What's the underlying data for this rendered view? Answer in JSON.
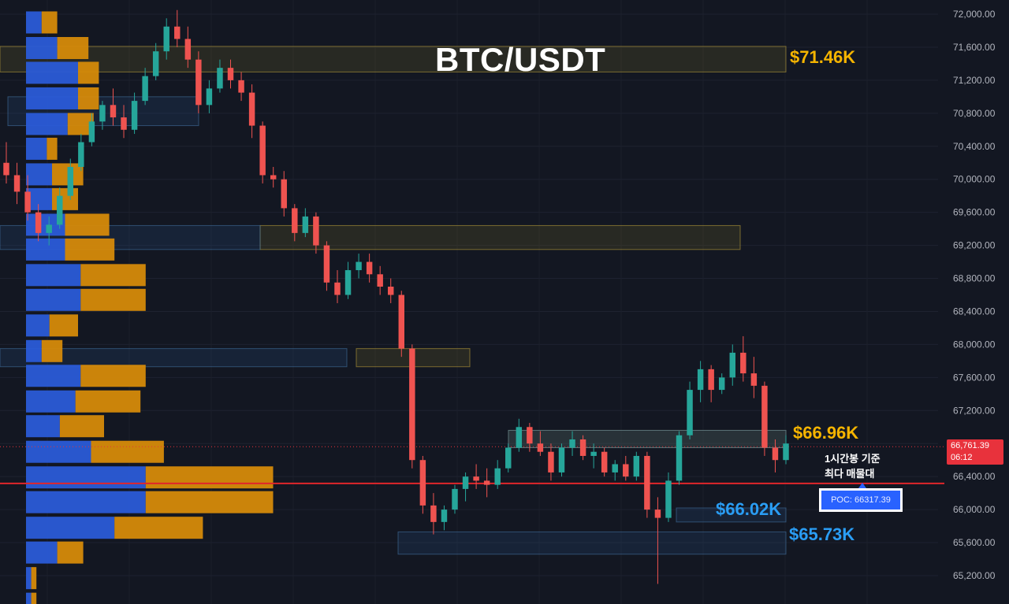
{
  "chart_data": {
    "type": "candlestick",
    "title": "BTC/USDT",
    "ylim": [
      65000,
      72200
    ],
    "y_ticks": [
      "72,000.00",
      "71,600.00",
      "71,200.00",
      "70,800.00",
      "70,400.00",
      "70,000.00",
      "69,600.00",
      "69,200.00",
      "68,800.00",
      "68,400.00",
      "68,000.00",
      "67,600.00",
      "67,200.00",
      "66,800.00",
      "66,400.00",
      "66,000.00",
      "65,600.00",
      "65,200.00"
    ],
    "y_tick_values": [
      72000,
      71600,
      71200,
      70800,
      70400,
      70000,
      69600,
      69200,
      68800,
      68400,
      68000,
      67600,
      67200,
      66800,
      66400,
      66000,
      65600,
      65200
    ],
    "current_price": {
      "label": "66,761.39",
      "countdown": "06:12",
      "value": 66761.39
    },
    "poc": {
      "label": "POC: 66317.39",
      "value": 66317.39
    },
    "annotation": {
      "line1": "1시간봉 기준",
      "line2": "최다 매물대"
    },
    "levels": [
      {
        "label": "$71.46K",
        "value": 71460,
        "low": 71300,
        "high": 71610,
        "color": "#f5b400"
      },
      {
        "label": "$66.96K",
        "value": 66960,
        "low": 66750,
        "high": 66960,
        "color": "#f5b400"
      },
      {
        "label": "$66.02K",
        "value": 66020,
        "low": 65850,
        "high": 66020,
        "color": "#2a9df4"
      },
      {
        "label": "$65.73K",
        "value": 65730,
        "low": 65460,
        "high": 65730,
        "color": "#2a9df4"
      }
    ],
    "zones": [
      {
        "kind": "supply",
        "low": 71300,
        "high": 71610
      },
      {
        "kind": "supply",
        "low": 69150,
        "high": 69440
      },
      {
        "kind": "supply",
        "low": 67730,
        "high": 67950
      },
      {
        "kind": "supply",
        "low": 66750,
        "high": 66960
      },
      {
        "kind": "demand",
        "low": 70650,
        "high": 71000
      },
      {
        "kind": "demand",
        "low": 69150,
        "high": 69440
      },
      {
        "kind": "demand",
        "low": 67730,
        "high": 67950
      },
      {
        "kind": "demand",
        "low": 66750,
        "high": 66960
      },
      {
        "kind": "demand",
        "low": 65850,
        "high": 66020
      },
      {
        "kind": "demand",
        "low": 65460,
        "high": 65730
      }
    ],
    "volume_profile": [
      {
        "price": 71900,
        "buy": 0.06,
        "sell": 0.06
      },
      {
        "price": 71590,
        "buy": 0.12,
        "sell": 0.12
      },
      {
        "price": 71290,
        "buy": 0.2,
        "sell": 0.08
      },
      {
        "price": 70980,
        "buy": 0.2,
        "sell": 0.08
      },
      {
        "price": 70670,
        "buy": 0.16,
        "sell": 0.1
      },
      {
        "price": 70370,
        "buy": 0.08,
        "sell": 0.04
      },
      {
        "price": 70060,
        "buy": 0.1,
        "sell": 0.12
      },
      {
        "price": 69760,
        "buy": 0.1,
        "sell": 0.1
      },
      {
        "price": 69450,
        "buy": 0.15,
        "sell": 0.17
      },
      {
        "price": 69150,
        "buy": 0.15,
        "sell": 0.19
      },
      {
        "price": 68840,
        "buy": 0.21,
        "sell": 0.25
      },
      {
        "price": 68540,
        "buy": 0.21,
        "sell": 0.25
      },
      {
        "price": 68230,
        "buy": 0.09,
        "sell": 0.11
      },
      {
        "price": 67920,
        "buy": 0.06,
        "sell": 0.08
      },
      {
        "price": 67620,
        "buy": 0.21,
        "sell": 0.25
      },
      {
        "price": 67310,
        "buy": 0.19,
        "sell": 0.25
      },
      {
        "price": 67010,
        "buy": 0.13,
        "sell": 0.17
      },
      {
        "price": 66700,
        "buy": 0.25,
        "sell": 0.28
      },
      {
        "price": 66390,
        "buy": 0.46,
        "sell": 0.49
      },
      {
        "price": 66090,
        "buy": 0.46,
        "sell": 0.49
      },
      {
        "price": 65780,
        "buy": 0.34,
        "sell": 0.34
      },
      {
        "price": 65480,
        "buy": 0.12,
        "sell": 0.1
      },
      {
        "price": 65170,
        "buy": 0.02,
        "sell": 0.02
      },
      {
        "price": 64860,
        "buy": 0.02,
        "sell": 0.02
      }
    ],
    "candles": [
      [
        70200,
        70450,
        69950,
        70050
      ],
      [
        70050,
        70200,
        69700,
        69850
      ],
      [
        69850,
        70050,
        69500,
        69600
      ],
      [
        69600,
        69700,
        69250,
        69350
      ],
      [
        69350,
        69550,
        69200,
        69450
      ],
      [
        69450,
        69900,
        69400,
        69800
      ],
      [
        69800,
        70250,
        69750,
        70150
      ],
      [
        70150,
        70550,
        70100,
        70450
      ],
      [
        70450,
        70800,
        70400,
        70700
      ],
      [
        70700,
        70950,
        70600,
        70900
      ],
      [
        70900,
        71100,
        70650,
        70750
      ],
      [
        70750,
        70900,
        70500,
        70600
      ],
      [
        70600,
        71050,
        70550,
        70950
      ],
      [
        70950,
        71350,
        70900,
        71250
      ],
      [
        71250,
        71650,
        71200,
        71550
      ],
      [
        71550,
        71950,
        71450,
        71850
      ],
      [
        71850,
        72050,
        71600,
        71700
      ],
      [
        71700,
        71850,
        71350,
        71450
      ],
      [
        71450,
        71550,
        70800,
        70900
      ],
      [
        70900,
        71200,
        70800,
        71100
      ],
      [
        71100,
        71450,
        71050,
        71350
      ],
      [
        71350,
        71450,
        71100,
        71200
      ],
      [
        71200,
        71300,
        70950,
        71050
      ],
      [
        71050,
        71150,
        70500,
        70650
      ],
      [
        70650,
        70700,
        69950,
        70050
      ],
      [
        70050,
        70150,
        69900,
        70000
      ],
      [
        70000,
        70100,
        69550,
        69650
      ],
      [
        69650,
        69700,
        69250,
        69350
      ],
      [
        69350,
        69650,
        69300,
        69550
      ],
      [
        69550,
        69600,
        69100,
        69200
      ],
      [
        69200,
        69250,
        68650,
        68750
      ],
      [
        68750,
        68900,
        68500,
        68600
      ],
      [
        68600,
        69000,
        68550,
        68900
      ],
      [
        68900,
        69100,
        68800,
        69000
      ],
      [
        69000,
        69100,
        68750,
        68850
      ],
      [
        68850,
        68950,
        68600,
        68700
      ],
      [
        68700,
        68800,
        68500,
        68600
      ],
      [
        68600,
        68650,
        67850,
        67950
      ],
      [
        67950,
        68000,
        66500,
        66600
      ],
      [
        66600,
        66650,
        65950,
        66050
      ],
      [
        66050,
        66200,
        65700,
        65850
      ],
      [
        65850,
        66050,
        65750,
        66000
      ],
      [
        66000,
        66300,
        65950,
        66250
      ],
      [
        66250,
        66450,
        66100,
        66400
      ],
      [
        66400,
        66550,
        66250,
        66350
      ],
      [
        66350,
        66500,
        66150,
        66300
      ],
      [
        66300,
        66600,
        66250,
        66500
      ],
      [
        66500,
        66800,
        66450,
        66750
      ],
      [
        66750,
        67100,
        66700,
        67000
      ],
      [
        67000,
        67050,
        66700,
        66800
      ],
      [
        66800,
        66950,
        66650,
        66700
      ],
      [
        66700,
        66800,
        66350,
        66450
      ],
      [
        66450,
        66800,
        66400,
        66750
      ],
      [
        66750,
        66950,
        66650,
        66850
      ],
      [
        66850,
        66900,
        66600,
        66650
      ],
      [
        66650,
        66800,
        66500,
        66700
      ],
      [
        66700,
        66750,
        66400,
        66450
      ],
      [
        66450,
        66600,
        66350,
        66550
      ],
      [
        66550,
        66650,
        66350,
        66400
      ],
      [
        66400,
        66700,
        66350,
        66650
      ],
      [
        66650,
        66700,
        65900,
        66000
      ],
      [
        66000,
        66150,
        65100,
        65900
      ],
      [
        65900,
        66450,
        65850,
        66350
      ],
      [
        66350,
        66950,
        66300,
        66900
      ],
      [
        66900,
        67550,
        66850,
        67450
      ],
      [
        67450,
        67800,
        67300,
        67700
      ],
      [
        67700,
        67750,
        67300,
        67450
      ],
      [
        67450,
        67650,
        67400,
        67600
      ],
      [
        67600,
        68000,
        67500,
        67900
      ],
      [
        67900,
        68100,
        67550,
        67650
      ],
      [
        67650,
        67850,
        67350,
        67500
      ],
      [
        67500,
        67550,
        66650,
        66750
      ],
      [
        66750,
        66850,
        66450,
        66600
      ],
      [
        66600,
        66900,
        66550,
        66800
      ]
    ]
  }
}
